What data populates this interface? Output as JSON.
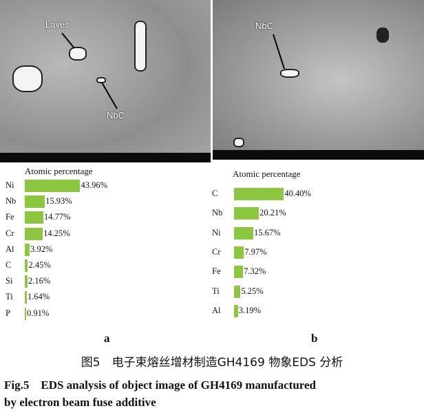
{
  "images": {
    "a": {
      "labels": [
        "Laves",
        "NbC"
      ]
    },
    "b": {
      "labels": [
        "NbC"
      ]
    }
  },
  "chart_data": [
    {
      "type": "bar",
      "title": "Atomic percentage",
      "orientation": "horizontal",
      "categories": [
        "Ni",
        "Nb",
        "Fe",
        "Cr",
        "Al",
        "C",
        "Si",
        "Ti",
        "P"
      ],
      "values": [
        43.96,
        15.93,
        14.77,
        14.25,
        3.92,
        2.45,
        2.16,
        1.64,
        0.91
      ],
      "value_labels": [
        "43.96%",
        "15.93%",
        "14.77%",
        "14.25%",
        "3.92%",
        "2.45%",
        "2.16%",
        "1.64%",
        "0.91%"
      ],
      "color": "#8dc63f",
      "panel": "a"
    },
    {
      "type": "bar",
      "title": "Atomic percentage",
      "orientation": "horizontal",
      "categories": [
        "C",
        "Nb",
        "Ni",
        "Cr",
        "Fe",
        "Ti",
        "Al"
      ],
      "values": [
        40.4,
        20.21,
        15.67,
        7.97,
        7.32,
        5.25,
        3.19
      ],
      "value_labels": [
        "40.40%",
        "20.21%",
        "15.67%",
        "7.97%",
        "7.32%",
        "5.25%",
        "3.19%"
      ],
      "color": "#8dc63f",
      "panel": "b"
    }
  ],
  "panels": {
    "a": "a",
    "b": "b"
  },
  "caption": {
    "cn": "图5　电子束熔丝增材制造GH4169 物象EDS 分析",
    "en_line1": "Fig.5　EDS analysis of object image of GH4169 manufactured",
    "en_line2": "by electron beam fuse additive"
  }
}
